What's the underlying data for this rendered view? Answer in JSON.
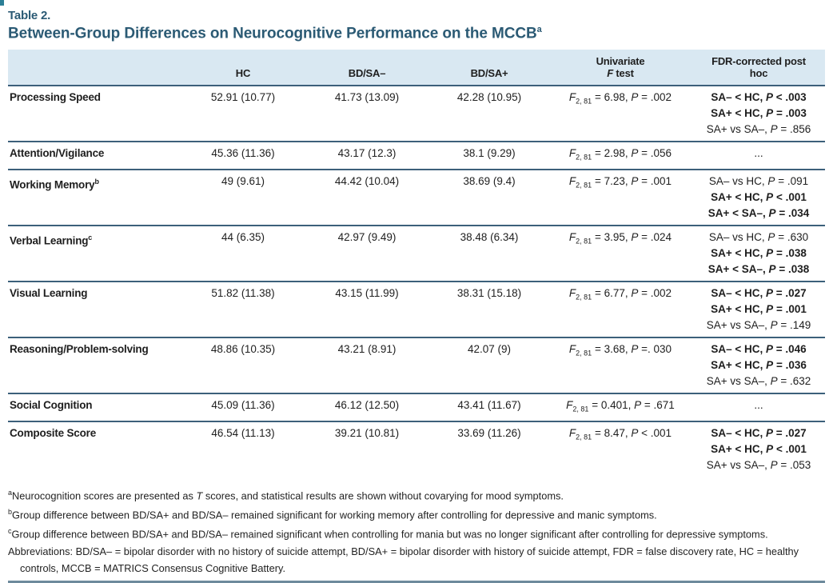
{
  "header": {
    "table_label": "Table 2.",
    "title": "Between-Group Differences on Neurocognitive Performance on the MCCB",
    "title_sup": "a"
  },
  "colors": {
    "accent_teal": "#2b5a74",
    "header_band": "#d9e8f2",
    "rule_dark": "#3c607a",
    "bottom_rule": "#6d8a9c"
  },
  "table": {
    "columns": [
      "HC",
      "BD/SA–",
      "BD/SA+"
    ],
    "f_header": {
      "line1": "Univariate",
      "line2_italic": "F",
      "line2_rest": " test"
    },
    "posthoc_header": {
      "line1": "FDR-corrected post",
      "line2": "hoc"
    },
    "rows": [
      {
        "label": "Processing Speed",
        "sup": "",
        "hc": "52.91 (10.77)",
        "sa_minus": "41.73 (13.09)",
        "sa_plus": "42.28 (10.95)",
        "f_sub": "2, 81",
        "f_after": " = 6.98, ",
        "p_after": " = .002",
        "posthoc": [
          {
            "pre": "SA– < HC, ",
            "p_after": " < .003",
            "bold": true
          },
          {
            "pre": "SA+ < HC, ",
            "p_after": " = .003",
            "bold": true
          },
          {
            "pre": "SA+ vs SA–, ",
            "p_after": " = .856",
            "bold": false
          }
        ]
      },
      {
        "label": "Attention/Vigilance",
        "sup": "",
        "hc": "45.36 (11.36)",
        "sa_minus": "43.17 (12.3)",
        "sa_plus": "38.1 (9.29)",
        "f_sub": "2, 81",
        "f_after": " = 2.98, ",
        "p_after": " = .056",
        "posthoc": [
          {
            "pre": "...",
            "bold": false
          }
        ]
      },
      {
        "label": "Working Memory",
        "sup": "b",
        "hc": "49 (9.61)",
        "sa_minus": "44.42 (10.04)",
        "sa_plus": "38.69 (9.4)",
        "f_sub": "2, 81",
        "f_after": " = 7.23, ",
        "p_after": " = .001",
        "posthoc": [
          {
            "pre": "SA– vs HC, ",
            "p_after": " = .091",
            "bold": false
          },
          {
            "pre": "SA+ < HC, ",
            "p_after": " < .001",
            "bold": true
          },
          {
            "pre": "SA+ < SA–, ",
            "p_after": " = .034",
            "bold": true
          }
        ]
      },
      {
        "label": "Verbal Learning",
        "sup": "c",
        "hc": "44 (6.35)",
        "sa_minus": "42.97 (9.49)",
        "sa_plus": "38.48 (6.34)",
        "f_sub": "2, 81",
        "f_after": " = 3.95, ",
        "p_after": " = .024",
        "posthoc": [
          {
            "pre": "SA– vs HC, ",
            "p_after": " = .630",
            "bold": false
          },
          {
            "pre": "SA+ < HC, ",
            "p_after": " = .038",
            "bold": true
          },
          {
            "pre": "SA+ < SA–, ",
            "p_after": " = .038",
            "bold": true
          }
        ]
      },
      {
        "label": "Visual Learning",
        "sup": "",
        "hc": "51.82 (11.38)",
        "sa_minus": "43.15 (11.99)",
        "sa_plus": "38.31 (15.18)",
        "f_sub": "2, 81",
        "f_after": " = 6.77, ",
        "p_after": " = .002",
        "posthoc": [
          {
            "pre": "SA– < HC, ",
            "p_after": " = .027",
            "bold": true
          },
          {
            "pre": "SA+ < HC, ",
            "p_after": " = .001",
            "bold": true
          },
          {
            "pre": "SA+ vs SA–, ",
            "p_after": " = .149",
            "bold": false
          }
        ]
      },
      {
        "label": "Reasoning/Problem-solving",
        "sup": "",
        "hc": "48.86 (10.35)",
        "sa_minus": "43.21 (8.91)",
        "sa_plus": "42.07 (9)",
        "f_sub": "2, 81",
        "f_after": " = 3.68, ",
        "p_after": " =. 030",
        "posthoc": [
          {
            "pre": "SA– < HC, ",
            "p_after": " = .046",
            "bold": true
          },
          {
            "pre": "SA+ < HC, ",
            "p_after": " = .036",
            "bold": true
          },
          {
            "pre": "SA+ vs SA–, ",
            "p_after": " = .632",
            "bold": false
          }
        ]
      },
      {
        "label": "Social Cognition",
        "sup": "",
        "hc": "45.09 (11.36)",
        "sa_minus": "46.12 (12.50)",
        "sa_plus": "43.41 (11.67)",
        "f_sub": "2, 81",
        "f_after": " = 0.401, ",
        "p_after": " = .671",
        "posthoc": [
          {
            "pre": "...",
            "bold": false
          }
        ]
      },
      {
        "label": "Composite Score",
        "sup": "",
        "hc": "46.54 (11.13)",
        "sa_minus": "39.21 (10.81)",
        "sa_plus": "33.69 (11.26)",
        "f_sub": "2, 81",
        "f_after": " = 8.47, ",
        "p_after": " < .001",
        "posthoc": [
          {
            "pre": "SA– < HC, ",
            "p_after": " = .027",
            "bold": true
          },
          {
            "pre": "SA+ < HC, ",
            "p_after": " < .001",
            "bold": true
          },
          {
            "pre": "SA+ vs SA–, ",
            "p_after": " = .053",
            "bold": false
          }
        ]
      }
    ]
  },
  "footnotes": [
    {
      "sup": "a",
      "pre": "Neurocognition scores are presented as ",
      "italic": "T",
      "post": " scores, and statistical results are shown without covarying for mood symptoms.",
      "hanging": false
    },
    {
      "sup": "b",
      "pre": "Group difference between BD/SA+ and BD/SA– remained significant for working memory after controlling for depressive and manic symptoms.",
      "italic": "",
      "post": "",
      "hanging": false
    },
    {
      "sup": "c",
      "pre": "Group difference between BD/SA+ and BD/SA– remained significant when controlling for mania but was no longer significant after controlling for depressive symptoms.",
      "italic": "",
      "post": "",
      "hanging": false
    },
    {
      "sup": "",
      "pre": "Abbreviations: BD/SA– = bipolar disorder with no history of suicide attempt, BD/SA+ = bipolar disorder with history of suicide attempt, FDR = false discovery rate, HC = healthy controls, MCCB = MATRICS Consensus Cognitive Battery.",
      "italic": "",
      "post": "",
      "hanging": true
    }
  ]
}
